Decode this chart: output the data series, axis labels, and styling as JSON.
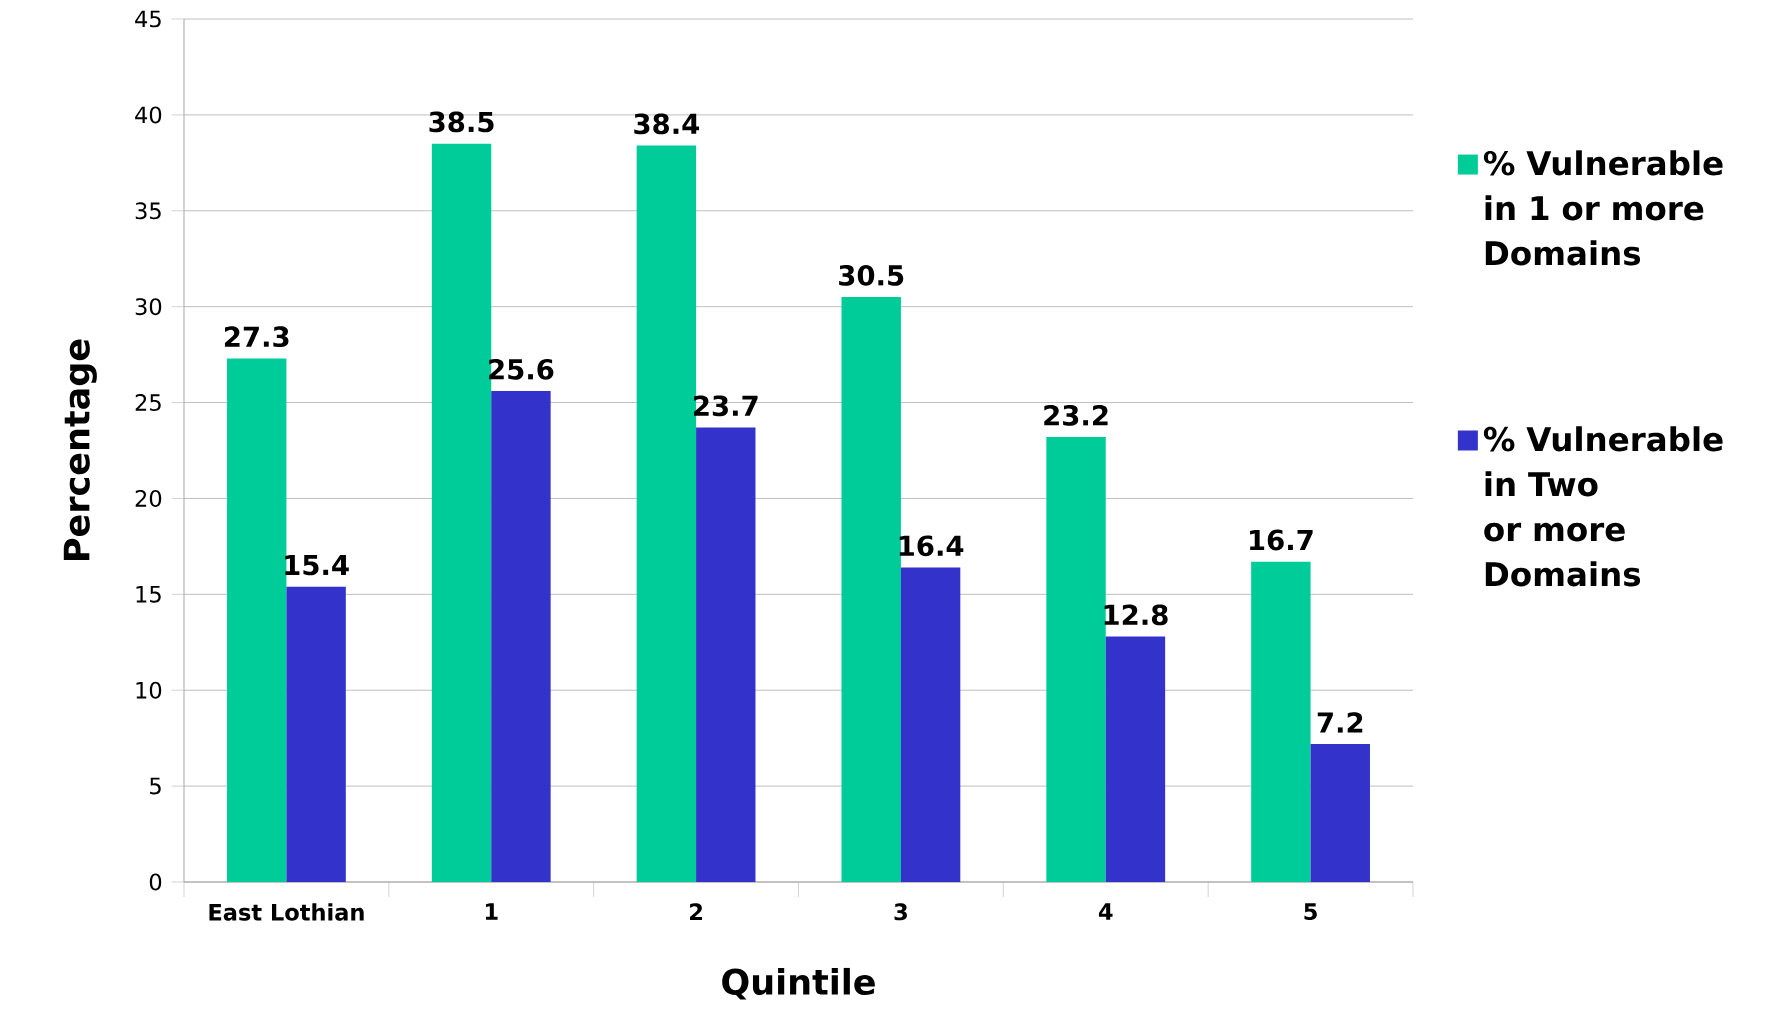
{
  "chart_data": {
    "type": "bar",
    "xlabel": "Quintile",
    "ylabel": "Percentage",
    "categories": [
      "East Lothian",
      "1",
      "2",
      "3",
      "4",
      "5"
    ],
    "series": [
      {
        "name": "% Vulnerable in 1 or more Domains",
        "color": "#00cc99",
        "values": [
          27.3,
          38.5,
          38.4,
          30.5,
          23.2,
          16.7
        ]
      },
      {
        "name": "% Vulnerable in Two or more Domains",
        "color": "#3333cc",
        "values": [
          15.4,
          25.6,
          23.7,
          16.4,
          12.8,
          7.2
        ]
      }
    ],
    "ylim": [
      0,
      45
    ],
    "yticks": [
      0,
      5,
      10,
      15,
      20,
      25,
      30,
      35,
      40,
      45
    ],
    "grid": "y",
    "legend": "right",
    "data_labels": true
  }
}
